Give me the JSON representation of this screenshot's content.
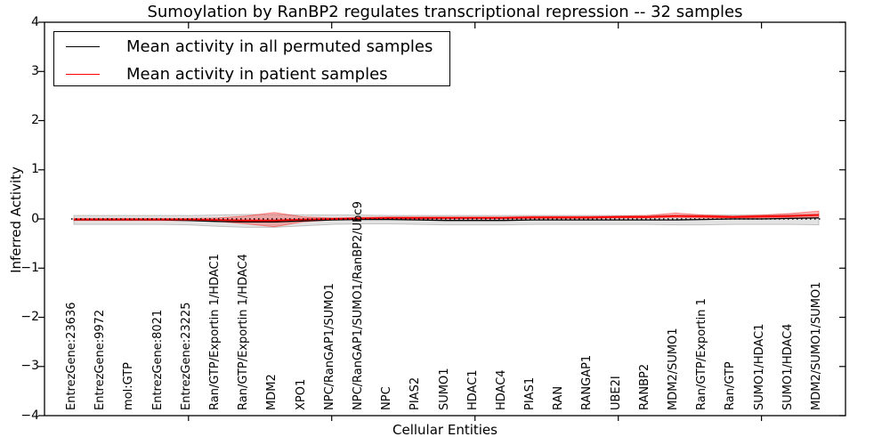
{
  "chart_data": {
    "type": "line",
    "title": "Sumoylation by RanBP2 regulates transcriptional repression -- 32 samples",
    "xlabel": "Cellular Entities",
    "ylabel": "Inferred Activity",
    "ylim": [
      -4,
      4
    ],
    "yticks": [
      -4,
      -3,
      -2,
      -1,
      0,
      1,
      2,
      3,
      4
    ],
    "x_major_tick_positions": [
      5,
      10,
      15,
      20,
      25
    ],
    "grid": false,
    "legend_position": "upper left",
    "categories": [
      "EntrezGene:23636",
      "EntrezGene:9972",
      "mol:GTP",
      "EntrezGene:8021",
      "EntrezGene:23225",
      "Ran/GTP/Exportin 1/HDAC1",
      "Ran/GTP/Exportin 1/HDAC4",
      "MDM2",
      "XPO1",
      "NPC/RanGAP1/SUMO1",
      "NPC/RanGAP1/SUMO1/RanBP2/Ubc9",
      "NPC",
      "PIAS2",
      "SUMO1",
      "HDAC1",
      "HDAC4",
      "PIAS1",
      "RAN",
      "RANGAP1",
      "UBE2I",
      "RANBP2",
      "MDM2/SUMO1",
      "Ran/GTP/Exportin 1",
      "Ran/GTP",
      "SUMO1/HDAC1",
      "SUMO1/HDAC4",
      "MDM2/SUMO1/SUMO1"
    ],
    "series": [
      {
        "name": "Mean activity in all permuted samples",
        "color": "#000000",
        "band_fill": "rgba(100,100,100,0.18)",
        "band_edge": "rgba(100,100,100,0.35)",
        "values": [
          -0.02,
          -0.02,
          -0.02,
          -0.02,
          -0.03,
          -0.05,
          -0.06,
          -0.06,
          -0.04,
          -0.02,
          -0.01,
          -0.01,
          -0.02,
          -0.03,
          -0.03,
          -0.03,
          -0.02,
          -0.02,
          -0.02,
          -0.02,
          -0.02,
          -0.02,
          -0.01,
          0.0,
          0.0,
          0.01,
          0.02
        ],
        "band_upper": [
          0.07,
          0.07,
          0.07,
          0.07,
          0.07,
          0.08,
          0.09,
          0.09,
          0.08,
          0.08,
          0.08,
          0.07,
          0.07,
          0.07,
          0.07,
          0.07,
          0.07,
          0.07,
          0.07,
          0.07,
          0.07,
          0.08,
          0.08,
          0.08,
          0.08,
          0.09,
          0.1
        ],
        "band_lower": [
          -0.11,
          -0.11,
          -0.11,
          -0.11,
          -0.12,
          -0.15,
          -0.17,
          -0.17,
          -0.14,
          -0.11,
          -0.1,
          -0.1,
          -0.11,
          -0.12,
          -0.12,
          -0.12,
          -0.11,
          -0.11,
          -0.11,
          -0.11,
          -0.11,
          -0.12,
          -0.12,
          -0.11,
          -0.11,
          -0.11,
          -0.12
        ]
      },
      {
        "name": "Mean activity in patient samples",
        "color": "#ff0000",
        "band_fill": "rgba(255,0,0,0.28)",
        "band_edge": "rgba(255,0,0,0.40)",
        "values": [
          -0.01,
          -0.01,
          -0.01,
          -0.01,
          -0.01,
          -0.02,
          -0.03,
          -0.03,
          -0.01,
          0.0,
          0.01,
          0.02,
          0.02,
          0.02,
          0.02,
          0.02,
          0.03,
          0.03,
          0.03,
          0.04,
          0.04,
          0.06,
          0.05,
          0.04,
          0.05,
          0.06,
          0.08
        ],
        "band_upper": [
          0.01,
          0.01,
          0.01,
          0.01,
          0.01,
          0.02,
          0.06,
          0.13,
          0.04,
          0.02,
          0.03,
          0.04,
          0.04,
          0.04,
          0.04,
          0.04,
          0.05,
          0.05,
          0.05,
          0.06,
          0.07,
          0.12,
          0.08,
          0.06,
          0.08,
          0.11,
          0.16
        ],
        "band_lower": [
          -0.03,
          -0.03,
          -0.03,
          -0.03,
          -0.03,
          -0.05,
          -0.1,
          -0.16,
          -0.06,
          -0.02,
          -0.01,
          0.0,
          0.0,
          0.0,
          0.0,
          0.0,
          0.01,
          0.01,
          0.01,
          0.02,
          0.02,
          0.03,
          0.02,
          0.02,
          0.02,
          0.03,
          0.03
        ]
      }
    ],
    "zero_line": {
      "value": 0,
      "color": "#000000",
      "style": "dotted"
    }
  }
}
